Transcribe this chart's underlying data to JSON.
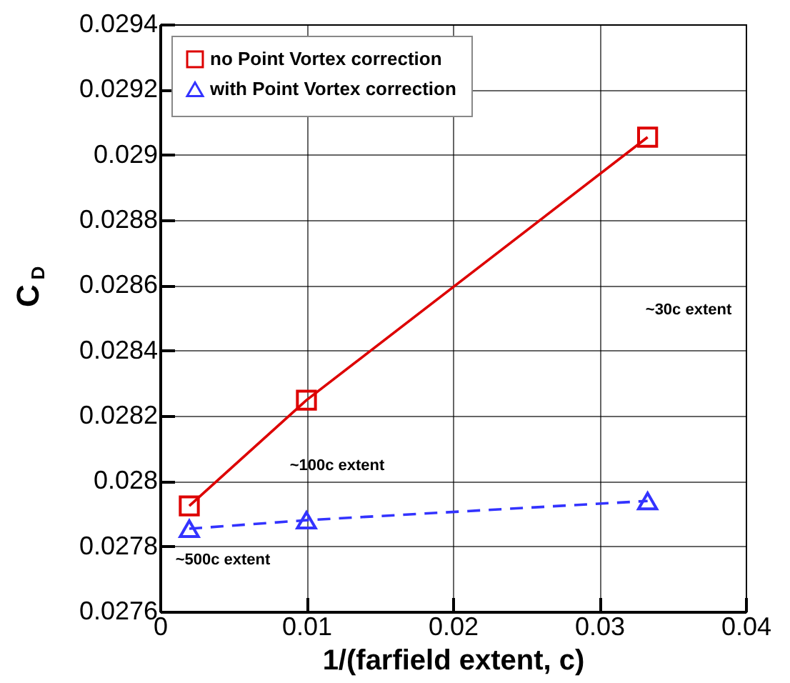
{
  "chart_data": {
    "type": "line",
    "xlabel": "1/(farfield extent, c)",
    "ylabel": "C$_{D}$",
    "x": [
      0.002,
      0.01,
      0.0333
    ],
    "series": [
      {
        "name": "no Point Vortex correction",
        "color": "#dd0000",
        "marker": "square",
        "line_style": "solid",
        "values": [
          0.027924,
          0.028248,
          0.029054
        ]
      },
      {
        "name": "with Point Vortex correction",
        "color": "#3333ff",
        "marker": "triangle",
        "line_style": "dashed",
        "values": [
          0.027854,
          0.02788,
          0.027939
        ]
      }
    ],
    "annotations": [
      "~30c extent",
      "~100c extent",
      "~500c extent"
    ],
    "xlim": [
      0,
      0.04
    ],
    "xticks": [
      0,
      0.01,
      0.02,
      0.03,
      0.04
    ],
    "ylim": [
      0.0276,
      0.0294
    ],
    "yticks": [
      0.0276,
      0.0278,
      0.028,
      0.0282,
      0.0284,
      0.0286,
      0.0288,
      0.029,
      0.0292,
      0.0294
    ],
    "grid": true,
    "legend": "top left"
  }
}
